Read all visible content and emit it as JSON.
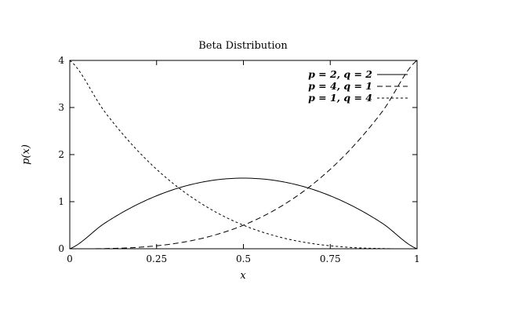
{
  "chart_data": {
    "type": "line",
    "title": "Beta Distribution",
    "xlabel": "x",
    "ylabel": "p(x)",
    "xlim": [
      0,
      1
    ],
    "ylim": [
      0,
      4
    ],
    "x_ticks": [
      {
        "value": 0,
        "label": "0"
      },
      {
        "value": 0.25,
        "label": "0.25"
      },
      {
        "value": 0.5,
        "label": "0.5"
      },
      {
        "value": 0.75,
        "label": "0.75"
      },
      {
        "value": 1,
        "label": "1"
      }
    ],
    "y_ticks": [
      {
        "value": 0,
        "label": "0"
      },
      {
        "value": 1,
        "label": "1"
      },
      {
        "value": 2,
        "label": "2"
      },
      {
        "value": 3,
        "label": "3"
      },
      {
        "value": 4,
        "label": "4"
      }
    ],
    "grid": false,
    "legend_position": "top-right",
    "color": "#000000",
    "x": [
      0,
      0.1,
      0.2,
      0.3,
      0.4,
      0.5,
      0.6,
      0.7,
      0.8,
      0.9,
      1.0
    ],
    "series": [
      {
        "name": "p = 2, q = 2",
        "dash": "solid",
        "values": [
          0,
          0.54,
          0.96,
          1.26,
          1.44,
          1.5,
          1.44,
          1.26,
          0.96,
          0.54,
          0
        ]
      },
      {
        "name": "p = 4, q = 1",
        "dash": "dashed",
        "values": [
          0,
          0.004,
          0.032,
          0.108,
          0.256,
          0.5,
          0.864,
          1.372,
          2.048,
          2.916,
          4
        ]
      },
      {
        "name": "p = 1, q = 4",
        "dash": "short-dashed",
        "values": [
          4,
          2.916,
          2.048,
          1.372,
          0.864,
          0.5,
          0.256,
          0.108,
          0.032,
          0.004,
          0
        ]
      }
    ]
  }
}
